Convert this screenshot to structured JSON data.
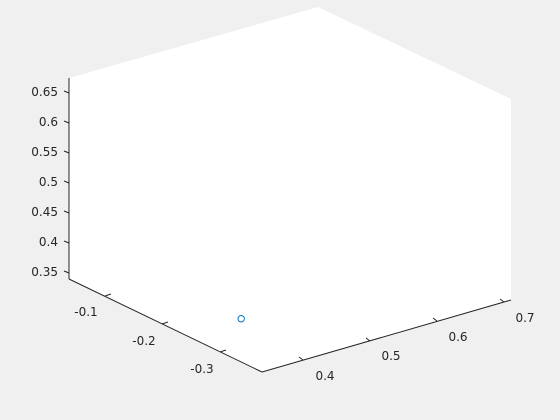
{
  "chart_data": {
    "type": "scatter",
    "view": "3d",
    "title": "",
    "xlabel": "",
    "ylabel": "",
    "zlabel": "",
    "grid": false,
    "box": false,
    "x_ticks": [
      "0.4",
      "0.5",
      "0.6",
      "0.7"
    ],
    "y_ticks": [
      "-0.1",
      "-0.2",
      "-0.3"
    ],
    "z_ticks": [
      "0.35",
      "0.4",
      "0.45",
      "0.5",
      "0.55",
      "0.6",
      "0.65"
    ],
    "xlim": [
      0.35,
      0.72
    ],
    "ylim": [
      -0.35,
      -0.07
    ],
    "zlim": [
      0.33,
      0.67
    ],
    "points": [
      {
        "x": 0.36,
        "y": -0.32,
        "z": 0.41
      }
    ],
    "marker": "circle",
    "marker_color": "#0072bd"
  }
}
